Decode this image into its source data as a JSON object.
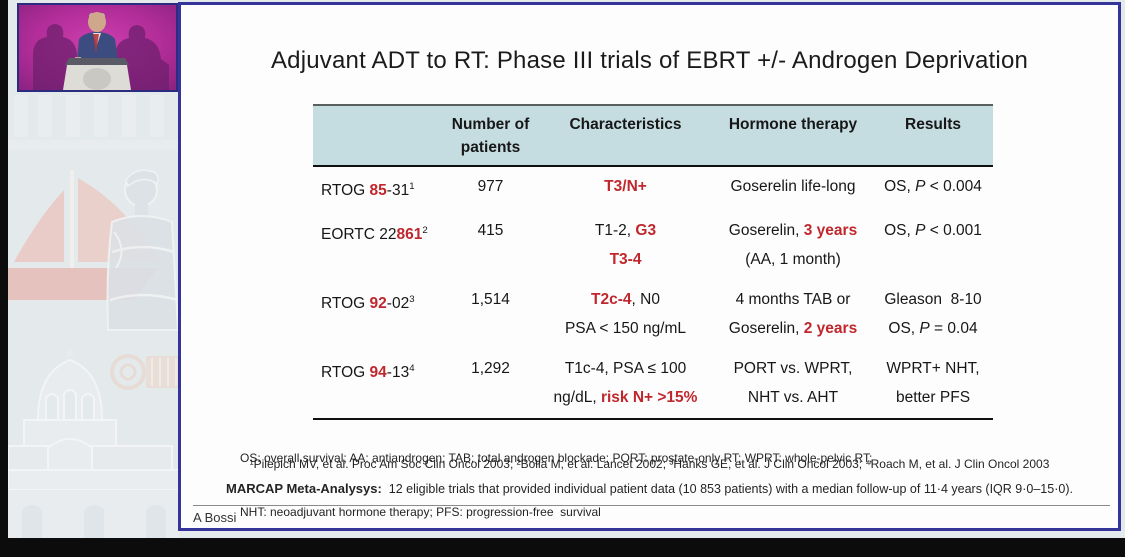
{
  "slide": {
    "title": "Adjuvant ADT to RT: Phase III trials of EBRT +/- Androgen Deprivation",
    "table": {
      "headers": [
        [
          ""
        ],
        [
          "Number of",
          "patients"
        ],
        [
          "Characteristics"
        ],
        [
          "Hormone therapy"
        ],
        [
          "Results"
        ]
      ],
      "rows": [
        {
          "cells": [
            [
              [
                "RTOG ",
                {
                  "t": "85",
                  "c": "red"
                },
                "-31",
                {
                  "t": "1",
                  "c": "sup"
                }
              ]
            ],
            [
              [
                "977"
              ]
            ],
            [
              [
                {
                  "t": "T3/N+",
                  "c": "red"
                }
              ]
            ],
            [
              [
                "Goserelin life-long"
              ]
            ],
            [
              [
                "OS, ",
                {
                  "t": "P",
                  "c": "it"
                },
                " < 0.004"
              ]
            ]
          ]
        },
        {
          "cells": [
            [
              [
                "EORTC 22",
                {
                  "t": "861",
                  "c": "red"
                },
                {
                  "t": "2",
                  "c": "sup"
                }
              ]
            ],
            [
              [
                "415"
              ]
            ],
            [
              [
                "T1-2, ",
                {
                  "t": "G3",
                  "c": "red"
                }
              ],
              [
                {
                  "t": "T3-4",
                  "c": "red"
                }
              ]
            ],
            [
              [
                "Goserelin, ",
                {
                  "t": "3 years",
                  "c": "red"
                }
              ],
              [
                "(AA, 1 month)"
              ]
            ],
            [
              [
                "OS, ",
                {
                  "t": "P",
                  "c": "it"
                },
                " < 0.001"
              ]
            ]
          ]
        },
        {
          "cells": [
            [
              [
                "RTOG ",
                {
                  "t": "92",
                  "c": "red"
                },
                "-02",
                {
                  "t": "3",
                  "c": "sup"
                }
              ]
            ],
            [
              [
                "1,514"
              ]
            ],
            [
              [
                {
                  "t": "T2c-4",
                  "c": "red"
                },
                ", N0"
              ],
              [
                "PSA < 150 ng/mL"
              ]
            ],
            [
              [
                "4 months TAB or"
              ],
              [
                "Goserelin, ",
                {
                  "t": "2 years",
                  "c": "red"
                }
              ]
            ],
            [
              [
                "Gleason  8-10"
              ],
              [
                "OS, ",
                {
                  "t": "P",
                  "c": "it"
                },
                " = 0.04"
              ]
            ]
          ]
        },
        {
          "cells": [
            [
              [
                "RTOG ",
                {
                  "t": "94",
                  "c": "red"
                },
                "-13",
                {
                  "t": "4",
                  "c": "sup"
                }
              ]
            ],
            [
              [
                "1,292"
              ]
            ],
            [
              [
                "T1c-4, PSA ≤ 100"
              ],
              [
                "ng/dL, ",
                {
                  "t": "risk N+ >15%",
                  "c": "red"
                }
              ]
            ],
            [
              [
                "PORT vs. WPRT,"
              ],
              [
                "NHT vs. AHT"
              ]
            ],
            [
              [
                "WPRT+ NHT,"
              ],
              [
                "better PFS"
              ]
            ]
          ]
        }
      ]
    },
    "abbreviations": [
      "OS: overall survival; AA: antiandrogen; TAB: total androgen blockade; PORT: prostate-only RT; WPRT: whole-pelvic RT;",
      "NHT: neoadjuvant hormone therapy; PFS: progression-free  survival"
    ],
    "references": "¹Pilepich MV, et al. Proc Am Soc Clin Oncol 2003; ²Bolla M, et al. Lancet 2002; ³Hanks GE, et al. J Clin Oncol 2003; ⁴Roach M, et al. J Clin Oncol 2003",
    "marcap_label": "MARCAP Meta-Analysys:",
    "marcap_text": "  12 eligible trials that provided individual patient data (10 853 patients) with a median follow-up of 11·4 years (IQR 9·0–15·0).",
    "author": "A Bossi"
  },
  "decorations": [
    "speaker-video",
    "sailboat-graphic",
    "statue-graphic",
    "column-graphic",
    "church-graphic"
  ],
  "colors": {
    "accent_red": "#c0272d",
    "table_header_teal": "#c5dde1",
    "slide_border_navy": "#34349b",
    "video_magenta": "#b62f9d",
    "sidebar_gray": "#e4e9ec"
  }
}
